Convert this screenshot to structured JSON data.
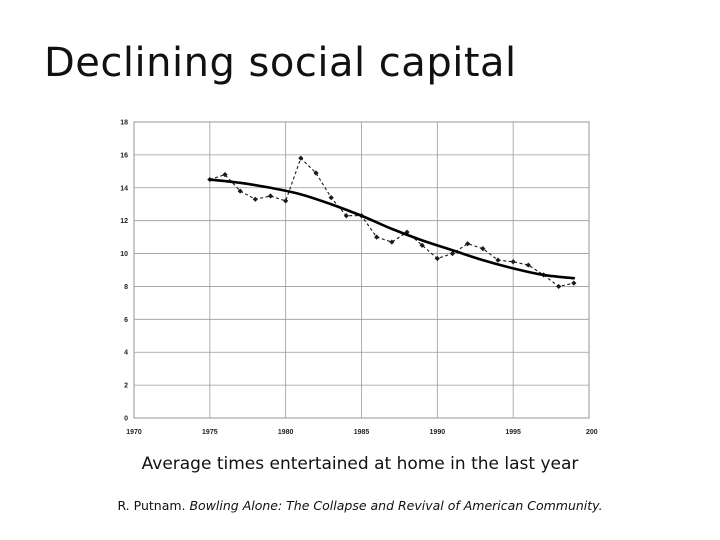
{
  "slide": {
    "title": "Declining social capital",
    "caption": "Average times entertained at home in the last year",
    "citation_author": "R. Putnam. ",
    "citation_work": "Bowling Alone: The Collapse and Revival of American Community."
  },
  "chart_data": {
    "type": "line",
    "title": "",
    "xlabel": "",
    "ylabel": "",
    "xlim": [
      1970,
      2000
    ],
    "ylim": [
      0,
      18
    ],
    "x_ticks": [
      "1970",
      "1975",
      "1980",
      "1985",
      "1990",
      "1995",
      "200"
    ],
    "y_ticks": [
      "0",
      "2",
      "4",
      "6",
      "8",
      "10",
      "12",
      "14",
      "16",
      "18"
    ],
    "grid": true,
    "series": [
      {
        "style": "dashed-with-diamond-markers",
        "color": "#1a1a1a",
        "x": [
          1975,
          1976,
          1977,
          1978,
          1979,
          1980,
          1981,
          1982,
          1983,
          1984,
          1985,
          1986,
          1987,
          1988,
          1989,
          1990,
          1991,
          1992,
          1993,
          1994,
          1995,
          1996,
          1997,
          1998,
          1999
        ],
        "values": [
          14.5,
          14.8,
          13.8,
          13.3,
          13.5,
          13.2,
          15.8,
          14.9,
          13.4,
          12.3,
          12.3,
          11.0,
          10.7,
          11.3,
          10.5,
          9.7,
          10.0,
          10.6,
          10.3,
          9.6,
          9.5,
          9.3,
          8.7,
          8.0,
          8.2
        ]
      },
      {
        "style": "solid-trend",
        "color": "#000000",
        "x": [
          1975,
          1977,
          1979,
          1981,
          1983,
          1985,
          1987,
          1989,
          1991,
          1993,
          1995,
          1997,
          1999
        ],
        "values": [
          14.5,
          14.3,
          14.0,
          13.6,
          13.0,
          12.3,
          11.5,
          10.8,
          10.2,
          9.6,
          9.1,
          8.7,
          8.5
        ]
      }
    ]
  }
}
